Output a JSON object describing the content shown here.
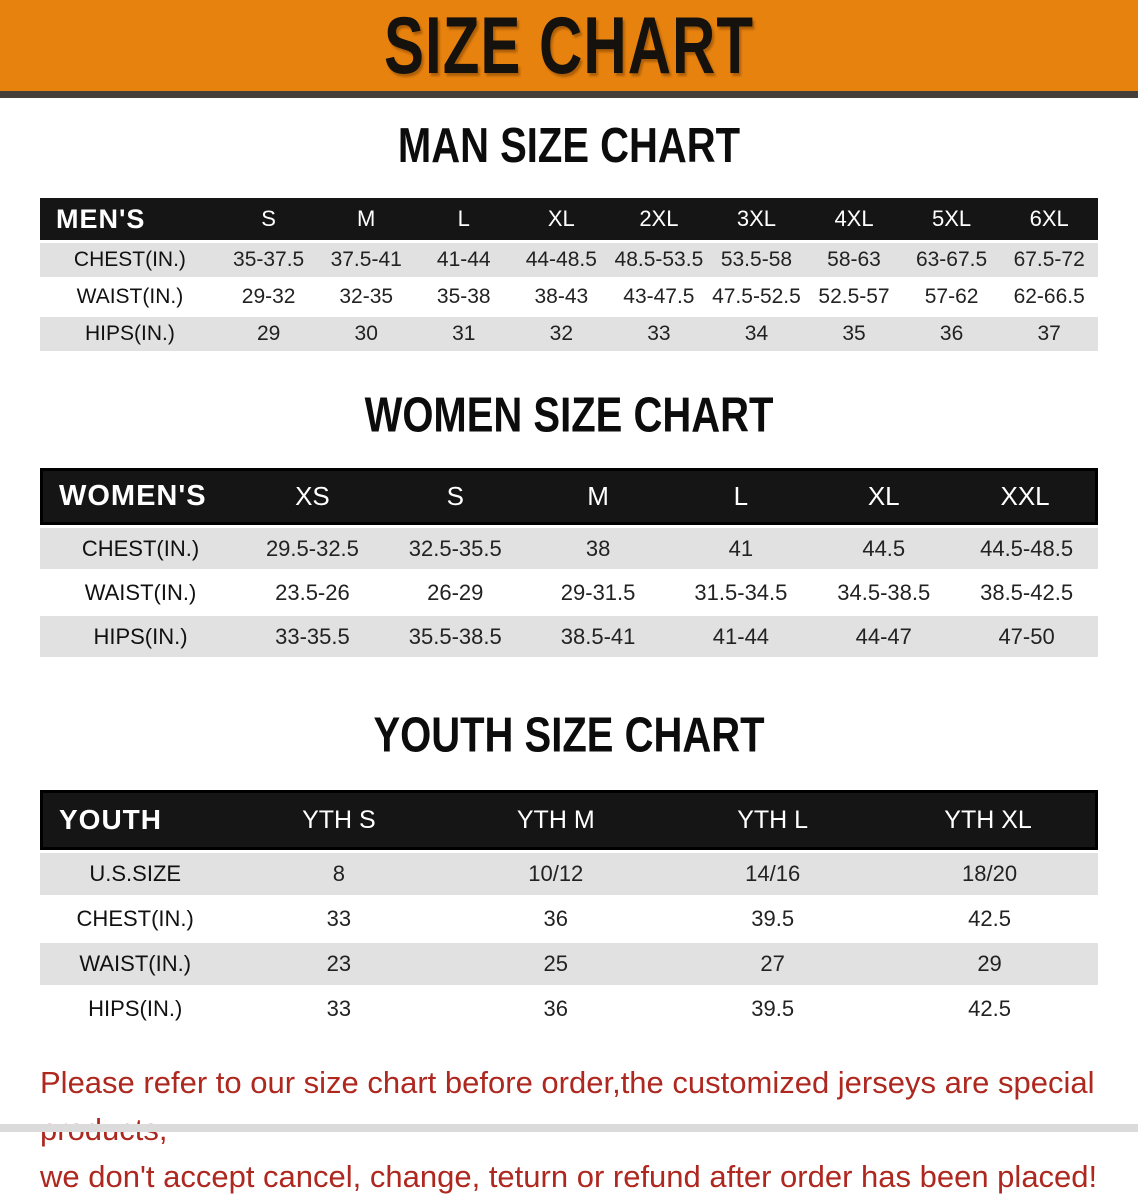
{
  "banner": {
    "title": "SIZE CHART"
  },
  "colors": {
    "banner_bg": "#E8820E",
    "banner_text": "#15110D",
    "table_header_bg": "#161616",
    "table_header_text": "#FFFFFF",
    "row_stripe_bg": "#E1E1E1",
    "row_plain_bg": "#FFFFFF",
    "disclaimer_text": "#AE2820"
  },
  "sections": [
    {
      "title": "MAN SIZE CHART",
      "table": {
        "header": [
          "MEN'S",
          "S",
          "M",
          "L",
          "XL",
          "2XL",
          "3XL",
          "4XL",
          "5XL",
          "6XL"
        ],
        "rows": [
          {
            "label": "CHEST(IN.)",
            "values": [
              "35-37.5",
              "37.5-41",
              "41-44",
              "44-48.5",
              "48.5-53.5",
              "53.5-58",
              "58-63",
              "63-67.5",
              "67.5-72"
            ]
          },
          {
            "label": "WAIST(IN.)",
            "values": [
              "29-32",
              "32-35",
              "35-38",
              "38-43",
              "43-47.5",
              "47.5-52.5",
              "52.5-57",
              "57-62",
              "62-66.5"
            ]
          },
          {
            "label": "HIPS(IN.)",
            "values": [
              "29",
              "30",
              "31",
              "32",
              "33",
              "34",
              "35",
              "36",
              "37"
            ]
          }
        ]
      }
    },
    {
      "title": "WOMEN SIZE CHART",
      "table": {
        "header": [
          "WOMEN'S",
          "XS",
          "S",
          "M",
          "L",
          "XL",
          "XXL"
        ],
        "rows": [
          {
            "label": "CHEST(IN.)",
            "values": [
              "29.5-32.5",
              "32.5-35.5",
              "38",
              "41",
              "44.5",
              "44.5-48.5"
            ]
          },
          {
            "label": "WAIST(IN.)",
            "values": [
              "23.5-26",
              "26-29",
              "29-31.5",
              "31.5-34.5",
              "34.5-38.5",
              "38.5-42.5"
            ]
          },
          {
            "label": "HIPS(IN.)",
            "values": [
              "33-35.5",
              "35.5-38.5",
              "38.5-41",
              "41-44",
              "44-47",
              "47-50"
            ]
          }
        ]
      }
    },
    {
      "title": "YOUTH SIZE CHART",
      "table": {
        "header": [
          "YOUTH",
          "YTH S",
          "YTH M",
          "YTH L",
          "YTH XL"
        ],
        "rows": [
          {
            "label": "U.S.SIZE",
            "values": [
              "8",
              "10/12",
              "14/16",
              "18/20"
            ]
          },
          {
            "label": "CHEST(IN.)",
            "values": [
              "33",
              "36",
              "39.5",
              "42.5"
            ]
          },
          {
            "label": "WAIST(IN.)",
            "values": [
              "23",
              "25",
              "27",
              "29"
            ]
          },
          {
            "label": "HIPS(IN.)",
            "values": [
              "33",
              "36",
              "39.5",
              "42.5"
            ]
          }
        ]
      }
    }
  ],
  "disclaimer": {
    "line1": "Please refer to our size chart before order,the customized jerseys are special products,",
    "line2": "we don't accept cancel, change, teturn or refund after order has been placed!"
  }
}
